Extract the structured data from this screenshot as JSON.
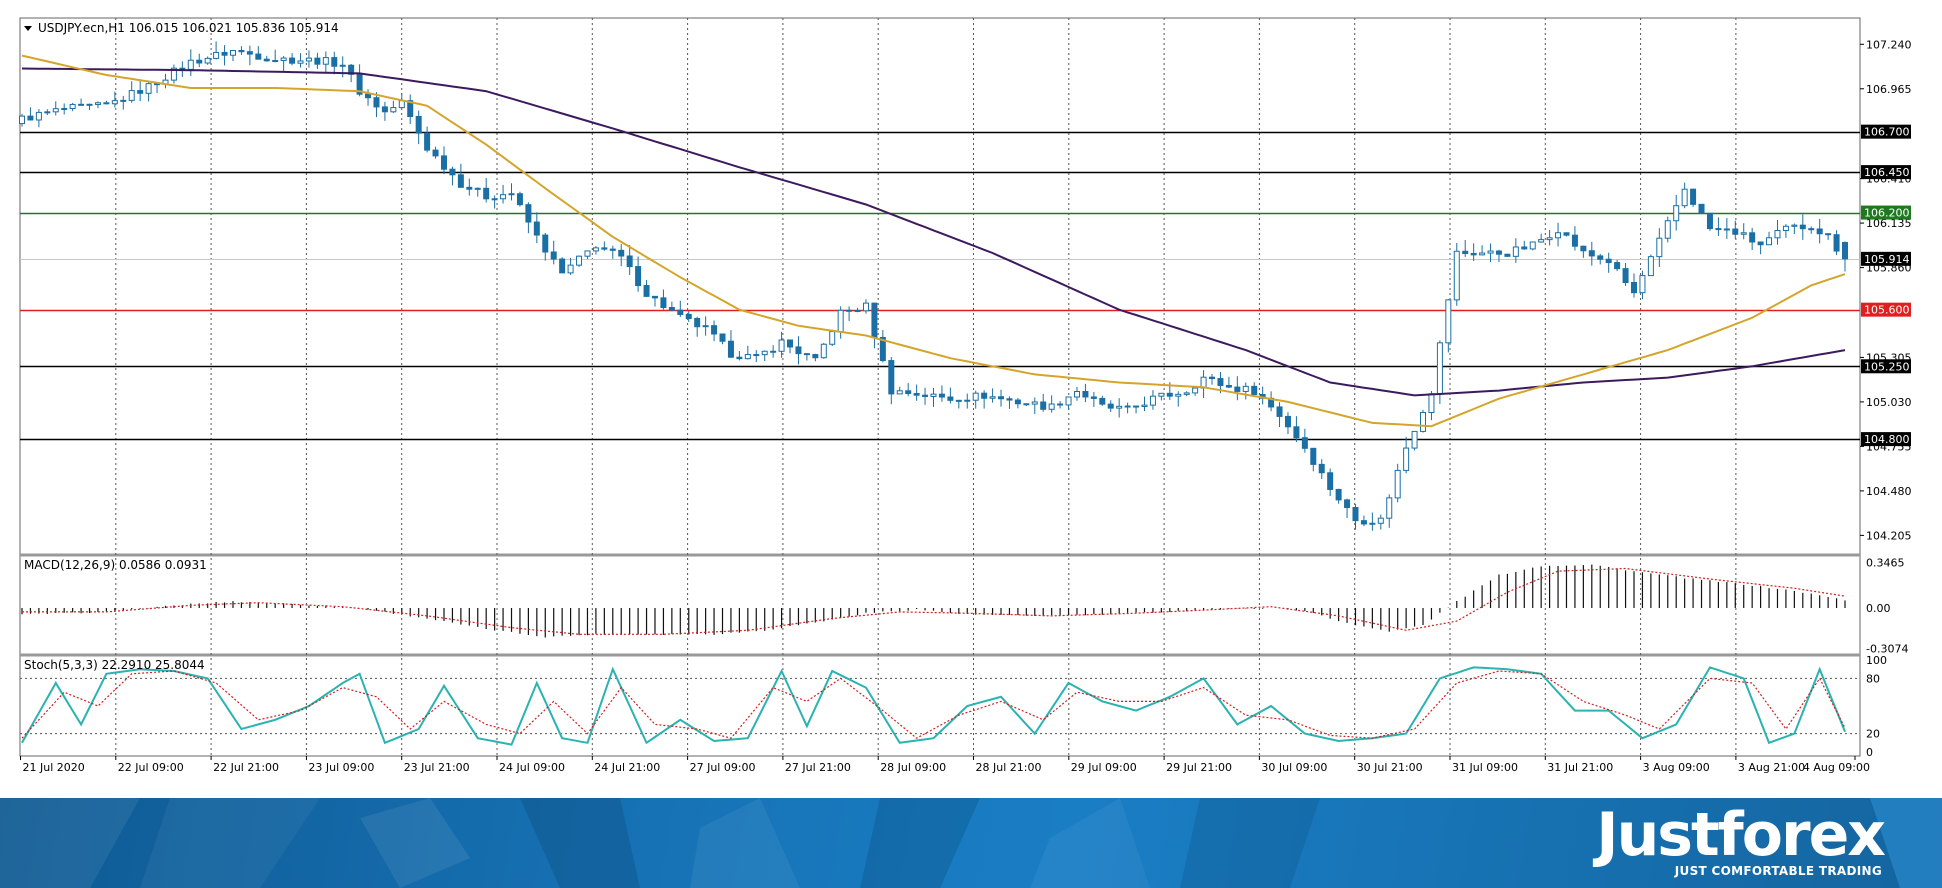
{
  "header": {
    "symbol_line": "USDJPY.ecn,H1  106.015 106.021 105.836 105.914"
  },
  "colors": {
    "bull": "#ffffff",
    "bear": "#1a6fa5",
    "candle_outline": "#1a6fa5",
    "ma_fast": "#d4a52a",
    "ma_slow": "#3c1a5e",
    "grid": "#555555",
    "macd_hist": "#111111",
    "macd_signal": "#d11f1f",
    "stoch_main": "#2ab3b0",
    "stoch_signal": "#d11f1f",
    "level_green": "#1f7a1f",
    "level_red": "#e02020",
    "brand_blue": "#1670b2"
  },
  "chart_data": [
    {
      "type": "candlestick",
      "title": "USDJPY.ecn,H1",
      "ohlc_last": {
        "open": 106.015,
        "high": 106.021,
        "low": 105.836,
        "close": 105.914
      },
      "ylim": [
        104.09,
        107.39
      ],
      "y_ticks": [
        "107.240",
        "106.965",
        "106.410",
        "106.135",
        "105.860",
        "105.305",
        "105.030",
        "104.755",
        "104.480",
        "104.205"
      ],
      "x_ticks": [
        "21 Jul 2020",
        "22 Jul 09:00",
        "22 Jul 21:00",
        "23 Jul 09:00",
        "23 Jul 21:00",
        "24 Jul 09:00",
        "24 Jul 21:00",
        "27 Jul 09:00",
        "27 Jul 21:00",
        "28 Jul 09:00",
        "28 Jul 21:00",
        "29 Jul 09:00",
        "29 Jul 21:00",
        "30 Jul 09:00",
        "30 Jul 21:00",
        "31 Jul 09:00",
        "31 Jul 21:00",
        "3 Aug 09:00",
        "3 Aug 21:00",
        "4 Aug 09:00"
      ],
      "levels": [
        {
          "label": "106.700",
          "value": 106.7,
          "color": "black"
        },
        {
          "label": "106.450",
          "value": 106.45,
          "color": "black"
        },
        {
          "label": "106.200",
          "value": 106.2,
          "color": "green"
        },
        {
          "label": "105.914",
          "value": 105.914,
          "color": "current"
        },
        {
          "label": "105.600",
          "value": 105.6,
          "color": "red"
        },
        {
          "label": "105.250",
          "value": 105.25,
          "color": "black"
        },
        {
          "label": "104.800",
          "value": 104.8,
          "color": "black"
        }
      ],
      "close_anchors": [
        [
          0,
          106.78
        ],
        [
          5,
          106.84
        ],
        [
          10,
          106.86
        ],
        [
          15,
          106.98
        ],
        [
          20,
          107.13
        ],
        [
          25,
          107.2
        ],
        [
          30,
          107.15
        ],
        [
          35,
          107.14
        ],
        [
          38,
          107.12
        ],
        [
          40,
          106.95
        ],
        [
          43,
          106.82
        ],
        [
          45,
          106.88
        ],
        [
          48,
          106.6
        ],
        [
          52,
          106.38
        ],
        [
          55,
          106.3
        ],
        [
          58,
          106.32
        ],
        [
          61,
          106.05
        ],
        [
          64,
          105.82
        ],
        [
          68,
          106.0
        ],
        [
          71,
          105.92
        ],
        [
          74,
          105.7
        ],
        [
          78,
          105.55
        ],
        [
          81,
          105.48
        ],
        [
          84,
          105.33
        ],
        [
          87,
          105.3
        ],
        [
          90,
          105.4
        ],
        [
          94,
          105.28
        ],
        [
          97,
          105.58
        ],
        [
          100,
          105.62
        ],
        [
          103,
          105.1
        ],
        [
          106,
          105.08
        ],
        [
          110,
          105.05
        ],
        [
          114,
          105.07
        ],
        [
          118,
          105.03
        ],
        [
          122,
          105.0
        ],
        [
          125,
          105.1
        ],
        [
          128,
          105.0
        ],
        [
          131,
          104.98
        ],
        [
          134,
          105.05
        ],
        [
          138,
          105.1
        ],
        [
          140,
          105.18
        ],
        [
          143,
          105.12
        ],
        [
          146,
          105.1
        ],
        [
          149,
          104.95
        ],
        [
          152,
          104.75
        ],
        [
          155,
          104.5
        ],
        [
          158,
          104.3
        ],
        [
          161,
          104.3
        ],
        [
          164,
          104.75
        ],
        [
          167,
          105.1
        ],
        [
          170,
          105.95
        ],
        [
          173,
          105.95
        ],
        [
          176,
          105.95
        ],
        [
          179,
          106.0
        ],
        [
          182,
          106.1
        ],
        [
          185,
          105.95
        ],
        [
          188,
          105.9
        ],
        [
          191,
          105.7
        ],
        [
          194,
          106.02
        ],
        [
          197,
          106.35
        ],
        [
          200,
          106.1
        ],
        [
          203,
          106.08
        ],
        [
          206,
          106.0
        ],
        [
          209,
          106.1
        ],
        [
          212,
          106.12
        ],
        [
          214,
          106.05
        ],
        [
          216,
          105.914
        ]
      ],
      "ma_fast": [
        [
          0,
          107.17
        ],
        [
          10,
          107.05
        ],
        [
          20,
          106.97
        ],
        [
          30,
          106.97
        ],
        [
          40,
          106.95
        ],
        [
          48,
          106.86
        ],
        [
          55,
          106.62
        ],
        [
          62,
          106.35
        ],
        [
          70,
          106.05
        ],
        [
          78,
          105.8
        ],
        [
          85,
          105.6
        ],
        [
          92,
          105.5
        ],
        [
          100,
          105.44
        ],
        [
          110,
          105.3
        ],
        [
          120,
          105.2
        ],
        [
          130,
          105.15
        ],
        [
          140,
          105.12
        ],
        [
          150,
          105.03
        ],
        [
          160,
          104.9
        ],
        [
          167,
          104.88
        ],
        [
          175,
          105.05
        ],
        [
          185,
          105.2
        ],
        [
          195,
          105.35
        ],
        [
          205,
          105.55
        ],
        [
          212,
          105.75
        ],
        [
          216,
          105.82
        ]
      ],
      "ma_slow": [
        [
          0,
          107.09
        ],
        [
          20,
          107.08
        ],
        [
          40,
          107.06
        ],
        [
          55,
          106.95
        ],
        [
          70,
          106.72
        ],
        [
          85,
          106.48
        ],
        [
          100,
          106.25
        ],
        [
          115,
          105.95
        ],
        [
          130,
          105.6
        ],
        [
          145,
          105.35
        ],
        [
          155,
          105.15
        ],
        [
          165,
          105.07
        ],
        [
          175,
          105.1
        ],
        [
          185,
          105.15
        ],
        [
          195,
          105.18
        ],
        [
          205,
          105.25
        ],
        [
          216,
          105.35
        ]
      ]
    },
    {
      "type": "bar",
      "title": "MACD(12,26,9) 0.0586 0.0931",
      "ylim": [
        -0.35,
        0.38
      ],
      "y_ticks": [
        "0.3465",
        "0.00",
        "-0.3074"
      ],
      "hist_anchors": [
        [
          0,
          -0.05
        ],
        [
          10,
          -0.03
        ],
        [
          20,
          0.03
        ],
        [
          25,
          0.05
        ],
        [
          32,
          0.03
        ],
        [
          40,
          0.0
        ],
        [
          48,
          -0.08
        ],
        [
          55,
          -0.16
        ],
        [
          62,
          -0.22
        ],
        [
          68,
          -0.2
        ],
        [
          75,
          -0.2
        ],
        [
          82,
          -0.2
        ],
        [
          88,
          -0.17
        ],
        [
          95,
          -0.1
        ],
        [
          100,
          -0.04
        ],
        [
          106,
          -0.01
        ],
        [
          112,
          -0.05
        ],
        [
          120,
          -0.06
        ],
        [
          128,
          -0.05
        ],
        [
          135,
          -0.03
        ],
        [
          142,
          -0.01
        ],
        [
          148,
          0.0
        ],
        [
          152,
          -0.02
        ],
        [
          156,
          -0.1
        ],
        [
          162,
          -0.18
        ],
        [
          166,
          -0.13
        ],
        [
          170,
          0.05
        ],
        [
          175,
          0.25
        ],
        [
          180,
          0.32
        ],
        [
          186,
          0.33
        ],
        [
          192,
          0.27
        ],
        [
          198,
          0.22
        ],
        [
          204,
          0.18
        ],
        [
          210,
          0.13
        ],
        [
          216,
          0.06
        ]
      ],
      "signal_anchors": [
        [
          0,
          -0.03
        ],
        [
          10,
          -0.03
        ],
        [
          20,
          0.02
        ],
        [
          28,
          0.04
        ],
        [
          38,
          0.01
        ],
        [
          48,
          -0.06
        ],
        [
          58,
          -0.15
        ],
        [
          66,
          -0.2
        ],
        [
          76,
          -0.2
        ],
        [
          86,
          -0.17
        ],
        [
          96,
          -0.08
        ],
        [
          104,
          -0.03
        ],
        [
          112,
          -0.04
        ],
        [
          122,
          -0.06
        ],
        [
          132,
          -0.04
        ],
        [
          142,
          -0.01
        ],
        [
          148,
          0.01
        ],
        [
          156,
          -0.06
        ],
        [
          164,
          -0.17
        ],
        [
          170,
          -0.1
        ],
        [
          176,
          0.12
        ],
        [
          182,
          0.28
        ],
        [
          190,
          0.3
        ],
        [
          200,
          0.22
        ],
        [
          210,
          0.15
        ],
        [
          216,
          0.09
        ]
      ]
    },
    {
      "type": "line",
      "title": "Stoch(5,3,3) 22.2910 25.8044",
      "ylim": [
        0,
        100
      ],
      "y_ticks": [
        "100",
        "80",
        "20",
        "0"
      ],
      "main_anchors": [
        [
          0,
          10
        ],
        [
          4,
          75
        ],
        [
          7,
          30
        ],
        [
          10,
          85
        ],
        [
          14,
          90
        ],
        [
          18,
          88
        ],
        [
          22,
          80
        ],
        [
          26,
          25
        ],
        [
          30,
          35
        ],
        [
          34,
          50
        ],
        [
          38,
          75
        ],
        [
          40,
          85
        ],
        [
          43,
          10
        ],
        [
          47,
          25
        ],
        [
          50,
          72
        ],
        [
          54,
          15
        ],
        [
          58,
          8
        ],
        [
          61,
          75
        ],
        [
          64,
          15
        ],
        [
          67,
          10
        ],
        [
          70,
          90
        ],
        [
          74,
          10
        ],
        [
          78,
          35
        ],
        [
          82,
          12
        ],
        [
          86,
          15
        ],
        [
          90,
          88
        ],
        [
          93,
          28
        ],
        [
          96,
          88
        ],
        [
          100,
          70
        ],
        [
          104,
          10
        ],
        [
          108,
          15
        ],
        [
          112,
          50
        ],
        [
          116,
          60
        ],
        [
          120,
          20
        ],
        [
          124,
          75
        ],
        [
          128,
          55
        ],
        [
          132,
          45
        ],
        [
          136,
          60
        ],
        [
          140,
          80
        ],
        [
          144,
          30
        ],
        [
          148,
          50
        ],
        [
          152,
          20
        ],
        [
          156,
          12
        ],
        [
          160,
          15
        ],
        [
          164,
          20
        ],
        [
          168,
          80
        ],
        [
          172,
          92
        ],
        [
          176,
          90
        ],
        [
          180,
          85
        ],
        [
          184,
          45
        ],
        [
          188,
          45
        ],
        [
          192,
          15
        ],
        [
          196,
          30
        ],
        [
          200,
          92
        ],
        [
          204,
          80
        ],
        [
          207,
          10
        ],
        [
          210,
          20
        ],
        [
          213,
          90
        ],
        [
          216,
          22
        ]
      ],
      "signal_anchors": [
        [
          0,
          15
        ],
        [
          5,
          65
        ],
        [
          9,
          50
        ],
        [
          13,
          85
        ],
        [
          18,
          88
        ],
        [
          23,
          75
        ],
        [
          28,
          35
        ],
        [
          33,
          45
        ],
        [
          38,
          70
        ],
        [
          42,
          60
        ],
        [
          46,
          25
        ],
        [
          50,
          55
        ],
        [
          55,
          30
        ],
        [
          59,
          20
        ],
        [
          63,
          55
        ],
        [
          67,
          20
        ],
        [
          71,
          70
        ],
        [
          75,
          30
        ],
        [
          80,
          25
        ],
        [
          84,
          15
        ],
        [
          89,
          70
        ],
        [
          93,
          55
        ],
        [
          97,
          80
        ],
        [
          102,
          45
        ],
        [
          106,
          15
        ],
        [
          111,
          40
        ],
        [
          116,
          55
        ],
        [
          121,
          35
        ],
        [
          125,
          65
        ],
        [
          130,
          55
        ],
        [
          135,
          55
        ],
        [
          140,
          70
        ],
        [
          145,
          40
        ],
        [
          150,
          35
        ],
        [
          155,
          18
        ],
        [
          160,
          15
        ],
        [
          165,
          25
        ],
        [
          170,
          75
        ],
        [
          175,
          88
        ],
        [
          180,
          85
        ],
        [
          185,
          55
        ],
        [
          190,
          40
        ],
        [
          194,
          25
        ],
        [
          200,
          80
        ],
        [
          205,
          75
        ],
        [
          209,
          25
        ],
        [
          213,
          80
        ],
        [
          216,
          26
        ]
      ]
    }
  ],
  "branding": {
    "brand_name": "Justforex",
    "slogan": "JUST COMFORTABLE TRADING"
  }
}
